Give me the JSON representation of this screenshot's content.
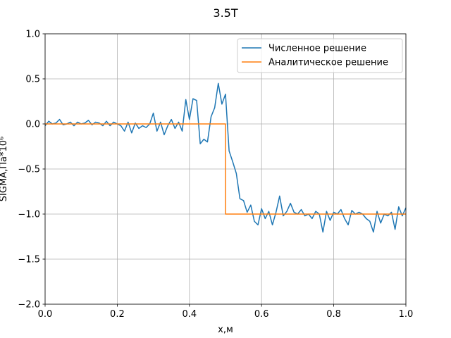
{
  "chart_data": {
    "type": "line",
    "title": "3.5T",
    "xlabel": "x,м",
    "ylabel": "SIGMA,Па*10⁶",
    "xlim": [
      0,
      1
    ],
    "ylim": [
      -2,
      1
    ],
    "xticks": [
      {
        "value": 0,
        "label": "0.0"
      },
      {
        "value": 0.2,
        "label": "0.2"
      },
      {
        "value": 0.4,
        "label": "0.4"
      },
      {
        "value": 0.6,
        "label": "0.6"
      },
      {
        "value": 0.8,
        "label": "0.8"
      },
      {
        "value": 1,
        "label": "1.0"
      }
    ],
    "yticks": [
      {
        "value": 1,
        "label": "1.0"
      },
      {
        "value": 0.5,
        "label": "0.5"
      },
      {
        "value": 0,
        "label": "0.0"
      },
      {
        "value": -0.5,
        "label": "−0.5"
      },
      {
        "value": -1,
        "label": "−1.0"
      },
      {
        "value": -1.5,
        "label": "−1.5"
      },
      {
        "value": -2,
        "label": "−2.0"
      }
    ],
    "grid": true,
    "legend": "upper right",
    "series": [
      {
        "name": "Численное решение",
        "color": "#1f77b4",
        "x": [
          0,
          0.01,
          0.02,
          0.03,
          0.04,
          0.05,
          0.06,
          0.07,
          0.08,
          0.09,
          0.1,
          0.11,
          0.12,
          0.13,
          0.14,
          0.15,
          0.16,
          0.17,
          0.18,
          0.19,
          0.2,
          0.21,
          0.22,
          0.23,
          0.24,
          0.25,
          0.26,
          0.27,
          0.28,
          0.29,
          0.3,
          0.31,
          0.32,
          0.33,
          0.34,
          0.35,
          0.36,
          0.37,
          0.38,
          0.39,
          0.4,
          0.41,
          0.42,
          0.43,
          0.44,
          0.45,
          0.46,
          0.47,
          0.48,
          0.49,
          0.5,
          0.51,
          0.52,
          0.53,
          0.54,
          0.55,
          0.56,
          0.57,
          0.58,
          0.59,
          0.6,
          0.61,
          0.62,
          0.63,
          0.64,
          0.65,
          0.66,
          0.67,
          0.68,
          0.69,
          0.7,
          0.71,
          0.72,
          0.73,
          0.74,
          0.75,
          0.76,
          0.77,
          0.78,
          0.79,
          0.8,
          0.81,
          0.82,
          0.83,
          0.84,
          0.85,
          0.86,
          0.87,
          0.88,
          0.89,
          0.9,
          0.91,
          0.92,
          0.93,
          0.94,
          0.95,
          0.96,
          0.97,
          0.98,
          0.99,
          1
        ],
        "values": [
          -0.02,
          0.03,
          0,
          0.01,
          0.05,
          -0.01,
          0,
          0.02,
          -0.02,
          0.02,
          0,
          0.01,
          0.04,
          -0.01,
          0.02,
          0.01,
          -0.02,
          0.03,
          -0.02,
          0.02,
          0,
          -0.02,
          -0.08,
          0.02,
          -0.1,
          0.01,
          -0.05,
          -0.02,
          -0.04,
          0,
          0.12,
          -0.08,
          0.02,
          -0.12,
          -0.02,
          0.05,
          -0.05,
          0.02,
          -0.08,
          0.27,
          0.05,
          0.28,
          0.26,
          -0.22,
          -0.17,
          -0.2,
          0.08,
          0.18,
          0.45,
          0.22,
          0.33,
          -0.3,
          -0.42,
          -0.55,
          -0.83,
          -0.85,
          -0.98,
          -0.9,
          -1.08,
          -1.12,
          -0.94,
          -1.05,
          -0.97,
          -1.12,
          -0.98,
          -0.8,
          -1.02,
          -0.97,
          -0.88,
          -0.98,
          -1,
          -0.95,
          -1.02,
          -1,
          -1.05,
          -0.97,
          -1,
          -1.2,
          -0.97,
          -1.07,
          -0.98,
          -1,
          -0.95,
          -1.05,
          -1.12,
          -0.96,
          -1,
          -0.98,
          -1,
          -1.05,
          -1.08,
          -1.2,
          -0.97,
          -1.1,
          -1,
          -1.02,
          -0.98,
          -1.17,
          -0.92,
          -1.02,
          -0.93
        ]
      },
      {
        "name": "Аналитическое решение",
        "color": "#ff7f0e",
        "x": [
          0,
          0.5,
          0.5,
          1
        ],
        "values": [
          0,
          0,
          -1,
          -1
        ]
      }
    ]
  }
}
